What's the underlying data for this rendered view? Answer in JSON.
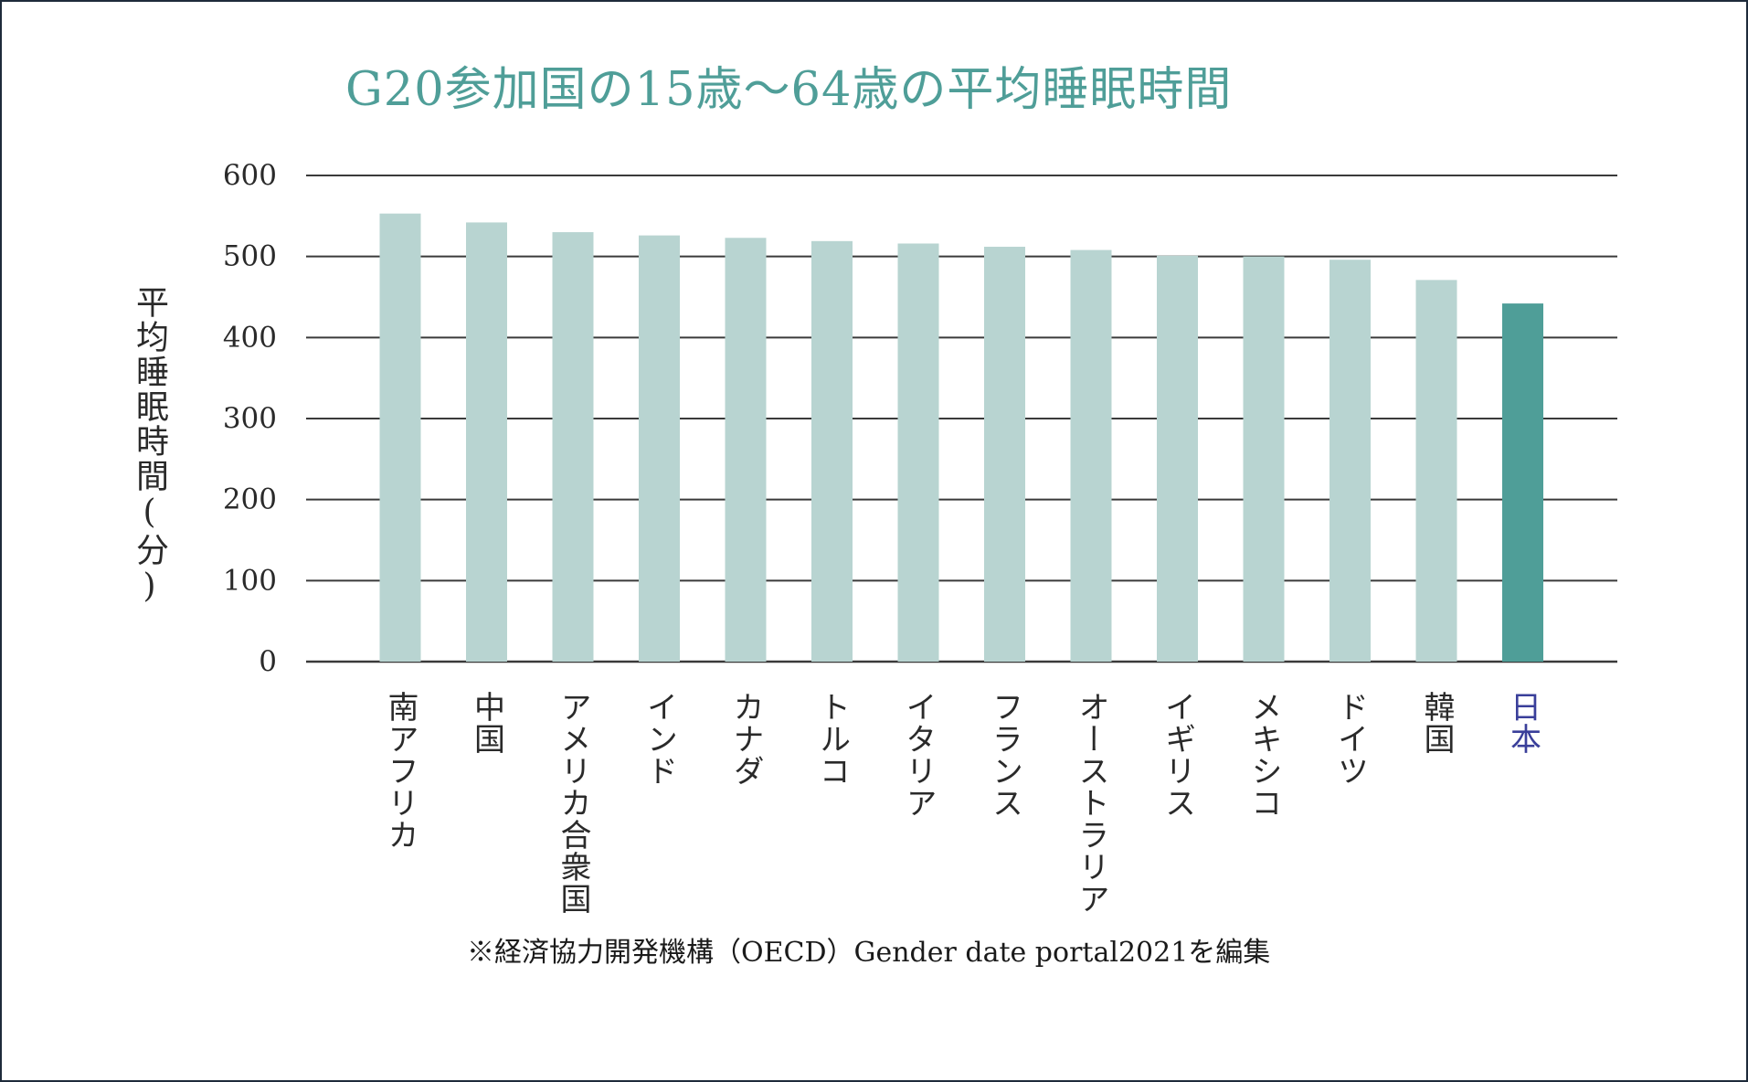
{
  "chart_data": {
    "type": "bar",
    "title": "G20参加国の15歳～64歳の平均睡眠時間",
    "xlabel": "",
    "ylabel": "平均睡眠時間(分)",
    "ylim": [
      0,
      600
    ],
    "yticks": [
      0,
      100,
      200,
      300,
      400,
      500,
      600
    ],
    "grid": true,
    "categories": [
      "南アフリカ",
      "中国",
      "アメリカ合衆国",
      "インド",
      "カナダ",
      "トルコ",
      "イタリア",
      "フランス",
      "オーストラリア",
      "イギリス",
      "メキシコ",
      "ドイツ",
      "韓国",
      "日本"
    ],
    "values": [
      553,
      542,
      530,
      526,
      523,
      519,
      516,
      512,
      508,
      501,
      500,
      496,
      471,
      442
    ],
    "highlight": [
      "日本"
    ],
    "colors": {
      "bar": "#b8d4d1",
      "highlight_bar": "#4f9e98",
      "highlight_label": "#3a3f9a",
      "gridline": "#3a3a3a",
      "title": "#4f9e98",
      "text": "#2a2a2a"
    }
  },
  "source_note": "※経済協力開発機構（OECD）Gender date portal2021を編集"
}
